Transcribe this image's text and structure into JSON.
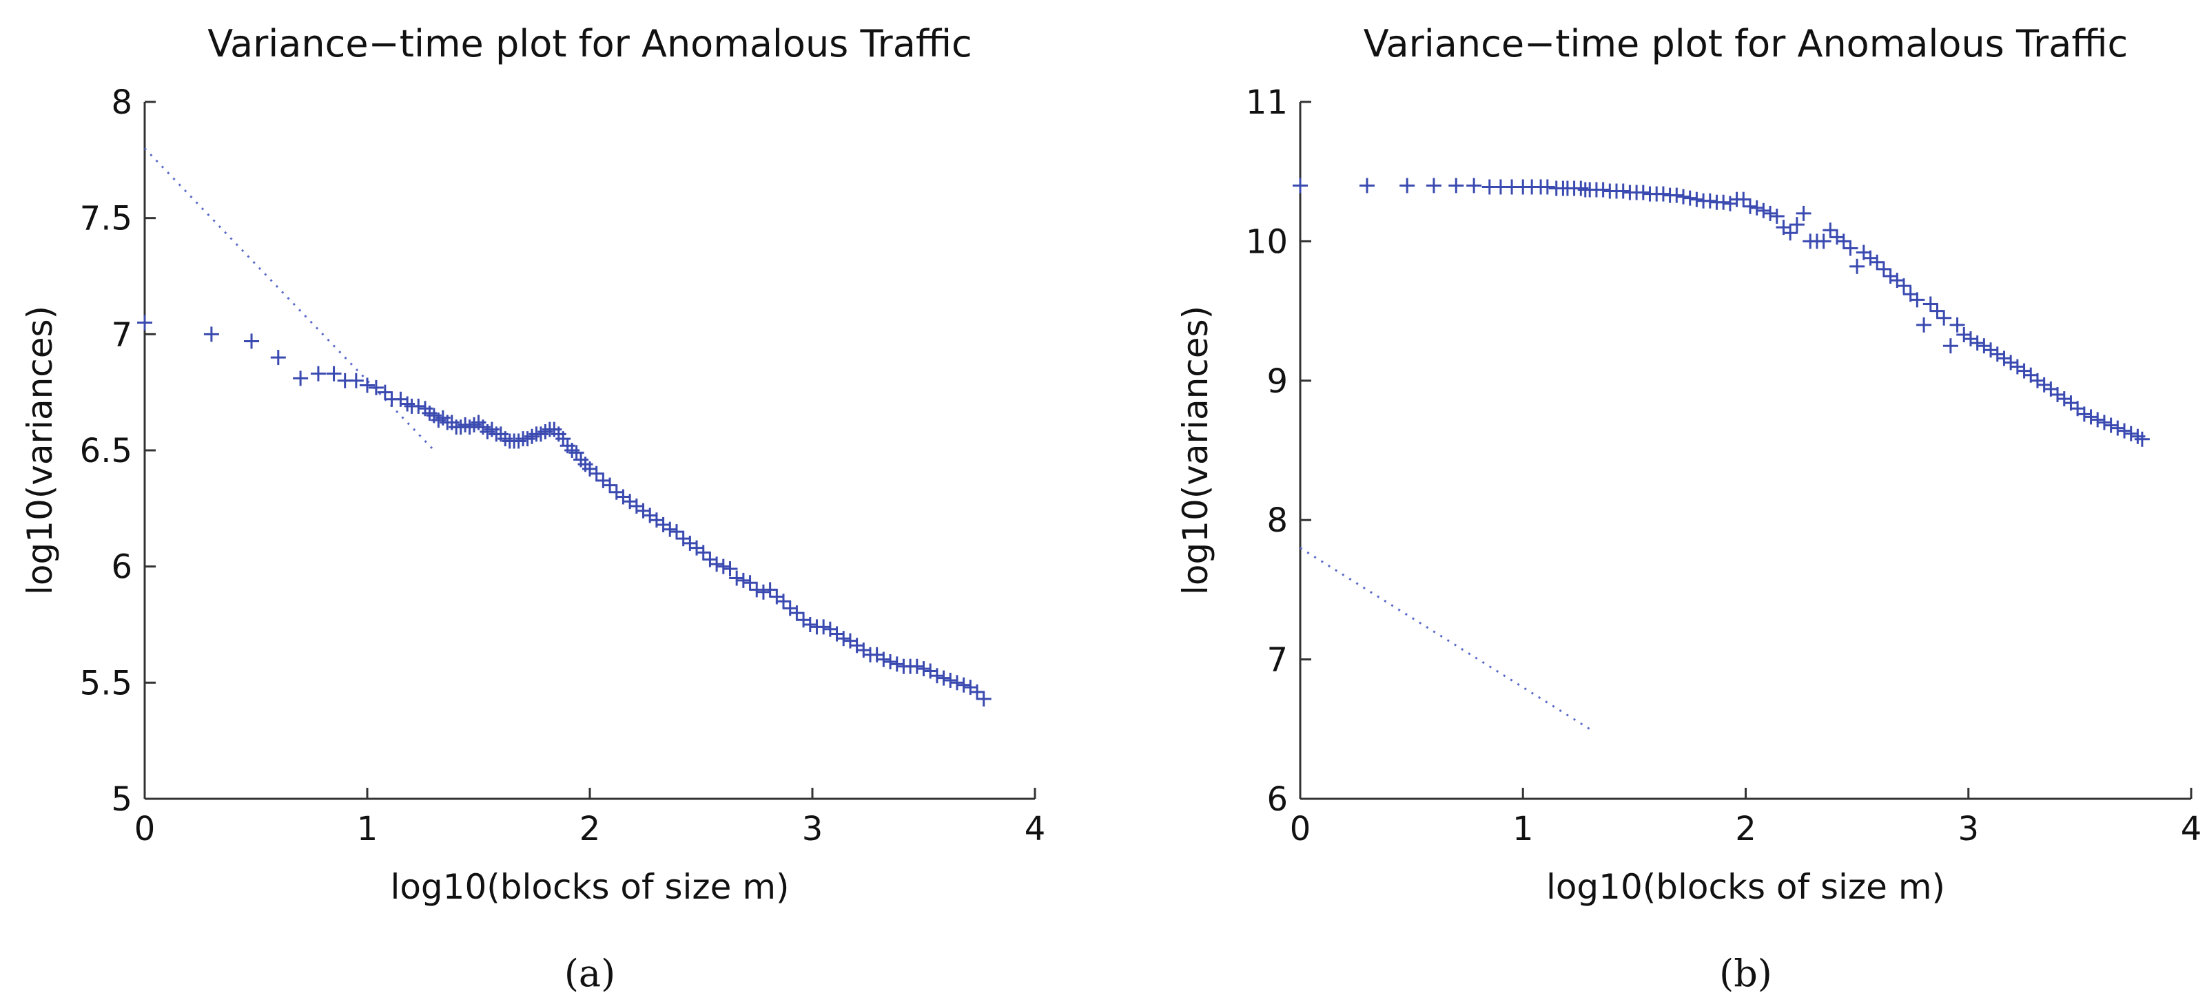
{
  "chart_data": [
    {
      "type": "scatter",
      "panel_caption": "(a)",
      "title": "Variance−time plot for Anomalous Traffic",
      "xlabel": "log10(blocks of size m)",
      "ylabel": "log10(variances)",
      "xlim": [
        0,
        4
      ],
      "ylim": [
        5,
        8
      ],
      "xticks": [
        0,
        1,
        2,
        3,
        4
      ],
      "xtick_labels": [
        "0",
        "1",
        "2",
        "3",
        "4"
      ],
      "yticks": [
        5,
        5.5,
        6,
        6.5,
        7,
        7.5,
        8
      ],
      "ytick_labels": [
        "5",
        "5.5",
        "6",
        "6.5",
        "7",
        "7.5",
        "8"
      ],
      "color": "#3a4ab0",
      "reference_line": {
        "x": [
          0,
          1.3
        ],
        "y": [
          7.8,
          6.5
        ]
      },
      "series": [
        {
          "name": "variances",
          "x": [
            0,
            0.3,
            0.48,
            0.6,
            0.7,
            0.78,
            0.85,
            0.9,
            0.95,
            1.0,
            1.04,
            1.08,
            1.11,
            1.15,
            1.18,
            1.2,
            1.23,
            1.26,
            1.28,
            1.3,
            1.32,
            1.34,
            1.36,
            1.38,
            1.4,
            1.42,
            1.44,
            1.46,
            1.48,
            1.5,
            1.52,
            1.54,
            1.56,
            1.58,
            1.6,
            1.62,
            1.64,
            1.66,
            1.68,
            1.7,
            1.72,
            1.74,
            1.76,
            1.78,
            1.8,
            1.82,
            1.84,
            1.86,
            1.88,
            1.9,
            1.92,
            1.94,
            1.96,
            1.98,
            2.0,
            2.03,
            2.06,
            2.09,
            2.12,
            2.15,
            2.18,
            2.21,
            2.24,
            2.27,
            2.3,
            2.33,
            2.36,
            2.39,
            2.42,
            2.45,
            2.48,
            2.51,
            2.54,
            2.57,
            2.6,
            2.63,
            2.66,
            2.69,
            2.72,
            2.75,
            2.78,
            2.81,
            2.84,
            2.87,
            2.9,
            2.93,
            2.96,
            2.99,
            3.02,
            3.05,
            3.08,
            3.11,
            3.14,
            3.17,
            3.2,
            3.23,
            3.26,
            3.29,
            3.32,
            3.35,
            3.38,
            3.41,
            3.44,
            3.47,
            3.5,
            3.53,
            3.56,
            3.59,
            3.62,
            3.65,
            3.68,
            3.71,
            3.74,
            3.77
          ],
          "y": [
            7.05,
            7.0,
            6.97,
            6.9,
            6.81,
            6.83,
            6.83,
            6.8,
            6.8,
            6.78,
            6.77,
            6.75,
            6.72,
            6.72,
            6.7,
            6.69,
            6.69,
            6.68,
            6.66,
            6.65,
            6.63,
            6.64,
            6.62,
            6.62,
            6.6,
            6.6,
            6.61,
            6.6,
            6.61,
            6.62,
            6.6,
            6.58,
            6.59,
            6.57,
            6.57,
            6.55,
            6.54,
            6.54,
            6.54,
            6.55,
            6.55,
            6.56,
            6.57,
            6.57,
            6.58,
            6.59,
            6.59,
            6.57,
            6.55,
            6.52,
            6.5,
            6.49,
            6.46,
            6.44,
            6.42,
            6.4,
            6.37,
            6.35,
            6.32,
            6.3,
            6.28,
            6.26,
            6.24,
            6.22,
            6.2,
            6.18,
            6.16,
            6.15,
            6.12,
            6.1,
            6.08,
            6.06,
            6.03,
            6.01,
            6.0,
            5.99,
            5.95,
            5.94,
            5.93,
            5.9,
            5.89,
            5.9,
            5.87,
            5.85,
            5.82,
            5.8,
            5.77,
            5.75,
            5.74,
            5.74,
            5.73,
            5.71,
            5.69,
            5.68,
            5.66,
            5.64,
            5.62,
            5.62,
            5.6,
            5.59,
            5.58,
            5.57,
            5.57,
            5.57,
            5.56,
            5.55,
            5.53,
            5.52,
            5.51,
            5.5,
            5.49,
            5.48,
            5.46,
            5.43
          ]
        }
      ]
    },
    {
      "type": "scatter",
      "panel_caption": "(b)",
      "title": "Variance−time plot for Anomalous Traffic",
      "xlabel": "log10(blocks of size m)",
      "ylabel": "log10(variances)",
      "xlim": [
        0,
        4
      ],
      "ylim": [
        6,
        11
      ],
      "xticks": [
        0,
        1,
        2,
        3,
        4
      ],
      "xtick_labels": [
        "0",
        "1",
        "2",
        "3",
        "4"
      ],
      "yticks": [
        6,
        7,
        8,
        9,
        10,
        11
      ],
      "ytick_labels": [
        "6",
        "7",
        "8",
        "9",
        "10",
        "11"
      ],
      "color": "#3a4ab0",
      "reference_line": {
        "x": [
          0,
          1.3
        ],
        "y": [
          7.8,
          6.5
        ]
      },
      "series": [
        {
          "name": "variances",
          "x": [
            0,
            0.3,
            0.48,
            0.6,
            0.7,
            0.78,
            0.85,
            0.9,
            0.95,
            1.0,
            1.04,
            1.08,
            1.11,
            1.15,
            1.18,
            1.2,
            1.23,
            1.26,
            1.28,
            1.3,
            1.33,
            1.36,
            1.39,
            1.42,
            1.45,
            1.48,
            1.51,
            1.54,
            1.57,
            1.6,
            1.63,
            1.66,
            1.69,
            1.72,
            1.75,
            1.78,
            1.81,
            1.84,
            1.87,
            1.9,
            1.93,
            1.96,
            1.99,
            2.02,
            2.05,
            2.08,
            2.11,
            2.14,
            2.17,
            2.2,
            2.23,
            2.26,
            2.29,
            2.32,
            2.35,
            2.38,
            2.41,
            2.44,
            2.47,
            2.5,
            2.53,
            2.56,
            2.59,
            2.62,
            2.65,
            2.68,
            2.71,
            2.74,
            2.77,
            2.8,
            2.83,
            2.86,
            2.89,
            2.92,
            2.95,
            2.98,
            3.01,
            3.04,
            3.07,
            3.1,
            3.13,
            3.16,
            3.19,
            3.22,
            3.25,
            3.28,
            3.31,
            3.34,
            3.37,
            3.4,
            3.43,
            3.46,
            3.49,
            3.52,
            3.55,
            3.58,
            3.61,
            3.64,
            3.67,
            3.7,
            3.73,
            3.76,
            3.78
          ],
          "y": [
            10.4,
            10.4,
            10.4,
            10.4,
            10.4,
            10.4,
            10.39,
            10.39,
            10.39,
            10.39,
            10.39,
            10.39,
            10.39,
            10.38,
            10.38,
            10.38,
            10.38,
            10.38,
            10.37,
            10.37,
            10.37,
            10.37,
            10.36,
            10.36,
            10.36,
            10.35,
            10.35,
            10.35,
            10.34,
            10.34,
            10.34,
            10.33,
            10.33,
            10.32,
            10.31,
            10.3,
            10.29,
            10.29,
            10.28,
            10.28,
            10.27,
            10.3,
            10.3,
            10.25,
            10.24,
            10.22,
            10.2,
            10.18,
            10.1,
            10.06,
            10.12,
            10.2,
            10.0,
            10.0,
            10.0,
            10.08,
            10.03,
            10.0,
            9.95,
            9.82,
            9.92,
            9.88,
            9.85,
            9.8,
            9.75,
            9.72,
            9.68,
            9.62,
            9.58,
            9.4,
            9.55,
            9.5,
            9.45,
            9.25,
            9.4,
            9.33,
            9.3,
            9.27,
            9.25,
            9.22,
            9.19,
            9.16,
            9.13,
            9.1,
            9.07,
            9.04,
            9.0,
            8.97,
            8.94,
            8.9,
            8.87,
            8.84,
            8.8,
            8.76,
            8.74,
            8.72,
            8.7,
            8.68,
            8.66,
            8.64,
            8.62,
            8.6,
            8.58
          ]
        }
      ]
    }
  ]
}
